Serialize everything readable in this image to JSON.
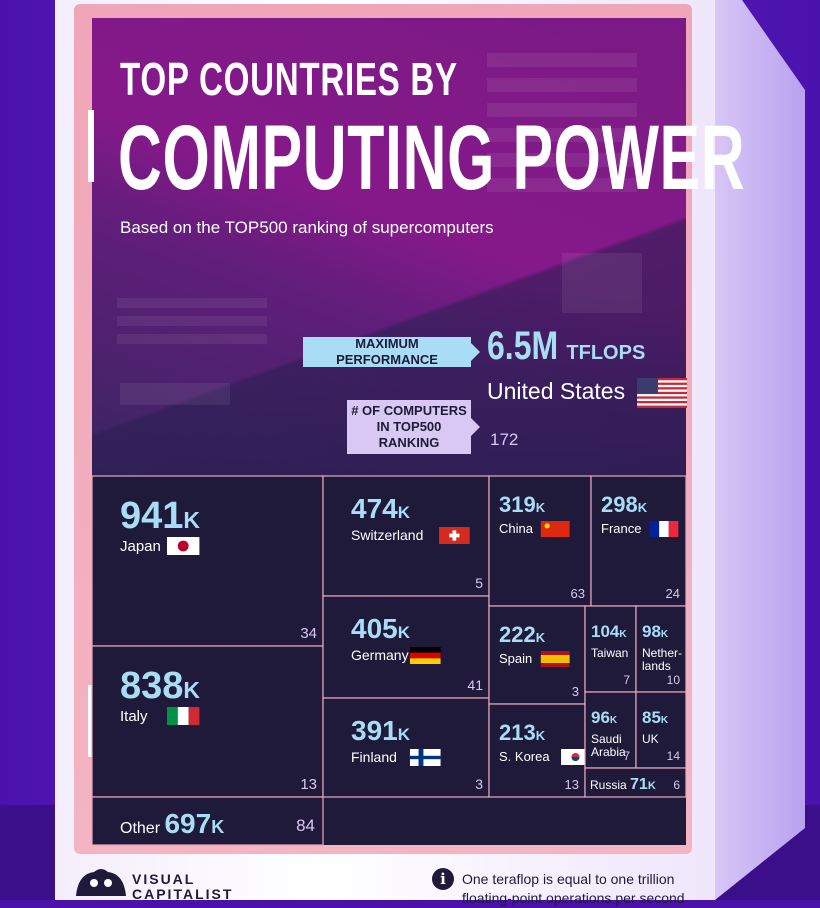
{
  "title_line1": "TOP COUNTRIES BY",
  "title_line2": "COMPUTING POWER",
  "subtitle": "Based on the TOP500 ranking of supercomputers",
  "max_performance_label": "MAXIMUM PERFORMANCE",
  "computers_label_line1": "# OF COMPUTERS",
  "computers_label_line2": "IN TOP500 RANKING",
  "top_country": {
    "value": "6.5M",
    "unit": "TFLOPS",
    "name": "United States",
    "count": "172"
  },
  "footer": {
    "logo_line1": "VISUAL",
    "logo_line2": "CAPITALIST",
    "note": "One teraflop is equal to one trillion floating-point operations per second"
  },
  "colors": {
    "accent": "#a9ddf6",
    "lavender": "#d8c8f3",
    "tile": "#1f1a3a",
    "header": "#7a1a84"
  },
  "chart_data": {
    "type": "treemap",
    "unit": "TFLOPS",
    "items": [
      {
        "name": "United States",
        "value": 6500000,
        "count": 172
      },
      {
        "name": "Japan",
        "label": "941",
        "value": 941000,
        "count": 34
      },
      {
        "name": "Italy",
        "label": "838",
        "value": 838000,
        "count": 13
      },
      {
        "name": "Other",
        "label": "697",
        "value": 697000,
        "count": 84
      },
      {
        "name": "Switzerland",
        "label": "474",
        "value": 474000,
        "count": 5
      },
      {
        "name": "Germany",
        "label": "405",
        "value": 405000,
        "count": 41
      },
      {
        "name": "Finland",
        "label": "391",
        "value": 391000,
        "count": 3
      },
      {
        "name": "China",
        "label": "319",
        "value": 319000,
        "count": 63
      },
      {
        "name": "France",
        "label": "298",
        "value": 298000,
        "count": 24
      },
      {
        "name": "Spain",
        "label": "222",
        "value": 222000,
        "count": 3
      },
      {
        "name": "S. Korea",
        "label": "213",
        "value": 213000,
        "count": 13
      },
      {
        "name": "Taiwan",
        "label": "104",
        "value": 104000,
        "count": 7
      },
      {
        "name": "Netherlands",
        "label": "98",
        "value": 98000,
        "count": 10
      },
      {
        "name": "Saudi Arabia",
        "label": "96",
        "value": 96000,
        "count": 7
      },
      {
        "name": "UK",
        "label": "85",
        "value": 85000,
        "count": 14
      },
      {
        "name": "Russia",
        "label": "71",
        "value": 71000,
        "count": 6
      }
    ],
    "display_names": {
      "Netherlands": [
        "Nether-",
        "lands"
      ],
      "Saudi Arabia": [
        "Saudi",
        "Arabia"
      ]
    },
    "value_suffix": "K"
  }
}
